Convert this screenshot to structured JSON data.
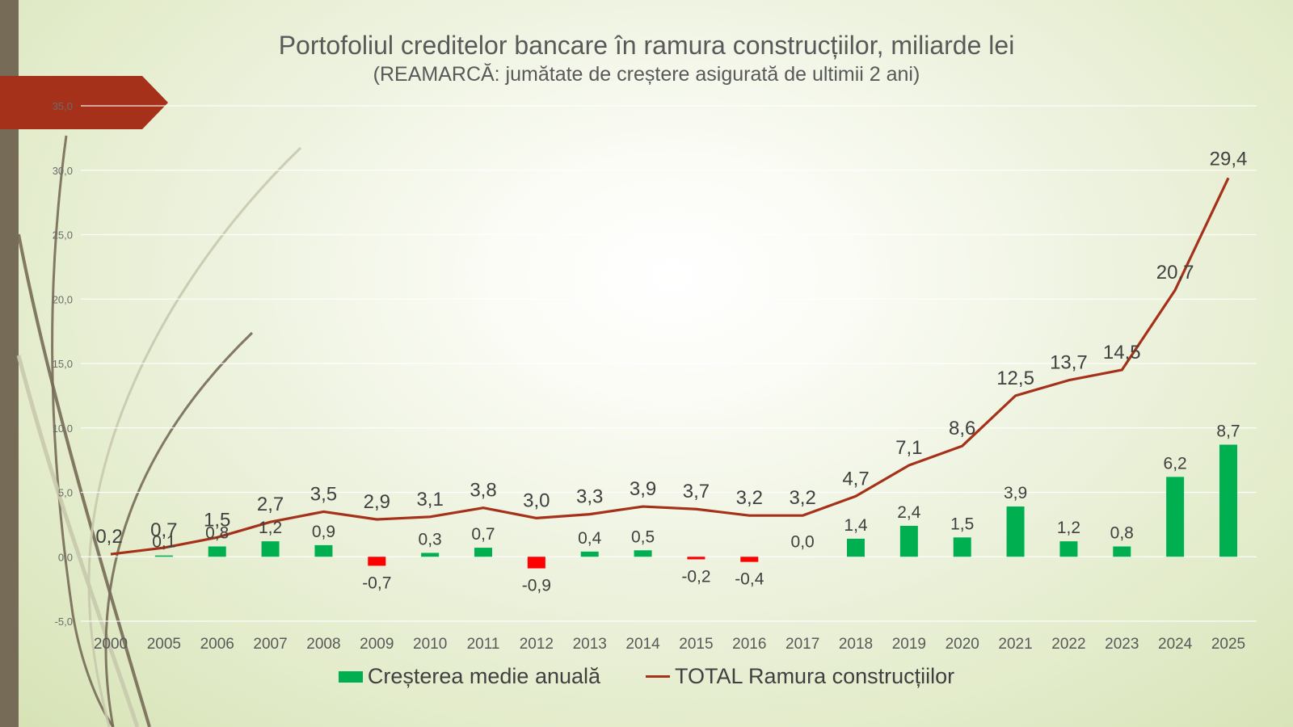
{
  "title": "Portofoliul creditelor bancare în ramura construcțiilor, miliarde lei",
  "subtitle": "(REAMARCĂ: jumătate de creștere asigurată de ultimii 2 ani)",
  "colors": {
    "bar_positive": "#00b050",
    "bar_negative": "#ff0000",
    "line": "#a5311a",
    "banner": "#a5311a",
    "sidebar": "#756b56"
  },
  "legend": {
    "bar_label": "Creșterea medie anuală",
    "line_label": "TOTAL Ramura construcțiilor"
  },
  "chart_data": {
    "type": "bar+line",
    "title": "Portofoliul creditelor bancare în ramura construcțiilor, miliarde lei",
    "categories": [
      "2000",
      "2005",
      "2006",
      "2007",
      "2008",
      "2009",
      "2010",
      "2011",
      "2012",
      "2013",
      "2014",
      "2015",
      "2016",
      "2017",
      "2018",
      "2019",
      "2020",
      "2021",
      "2022",
      "2023",
      "2024",
      "2025"
    ],
    "y_ticks": [
      "-5,0",
      "0,0",
      "5,0",
      "10,0",
      "15,0",
      "20,0",
      "25,0",
      "30,0",
      "35,0"
    ],
    "ylim": [
      -5,
      35
    ],
    "series": [
      {
        "name": "Creșterea medie anuală",
        "type": "bar",
        "values": [
          null,
          0.1,
          0.8,
          1.2,
          0.9,
          -0.7,
          0.3,
          0.7,
          -0.9,
          0.4,
          0.5,
          -0.2,
          -0.4,
          0.0,
          1.4,
          2.4,
          1.5,
          3.9,
          1.2,
          0.8,
          6.2,
          8.7
        ],
        "labels": [
          "",
          "0,1",
          "0,8",
          "1,2",
          "0,9",
          "-0,7",
          "0,3",
          "0,7",
          "-0,9",
          "0,4",
          "0,5",
          "-0,2",
          "-0,4",
          "0,0",
          "1,4",
          "2,4",
          "1,5",
          "3,9",
          "1,2",
          "0,8",
          "6,2",
          "8,7"
        ]
      },
      {
        "name": "TOTAL Ramura construcțiilor",
        "type": "line",
        "values": [
          0.2,
          0.7,
          1.5,
          2.7,
          3.5,
          2.9,
          3.1,
          3.8,
          3.0,
          3.3,
          3.9,
          3.7,
          3.2,
          3.2,
          4.7,
          7.1,
          8.6,
          12.5,
          13.7,
          14.5,
          20.7,
          29.4
        ],
        "labels": [
          "0,2",
          "0,7",
          "1,5",
          "2,7",
          "3,5",
          "2,9",
          "3,1",
          "3,8",
          "3,0",
          "3,3",
          "3,9",
          "3,7",
          "3,2",
          "3,2",
          "4,7",
          "7,1",
          "8,6",
          "12,5",
          "13,7",
          "14,5",
          "20,7",
          "29,4"
        ]
      }
    ],
    "legend_position": "bottom"
  }
}
